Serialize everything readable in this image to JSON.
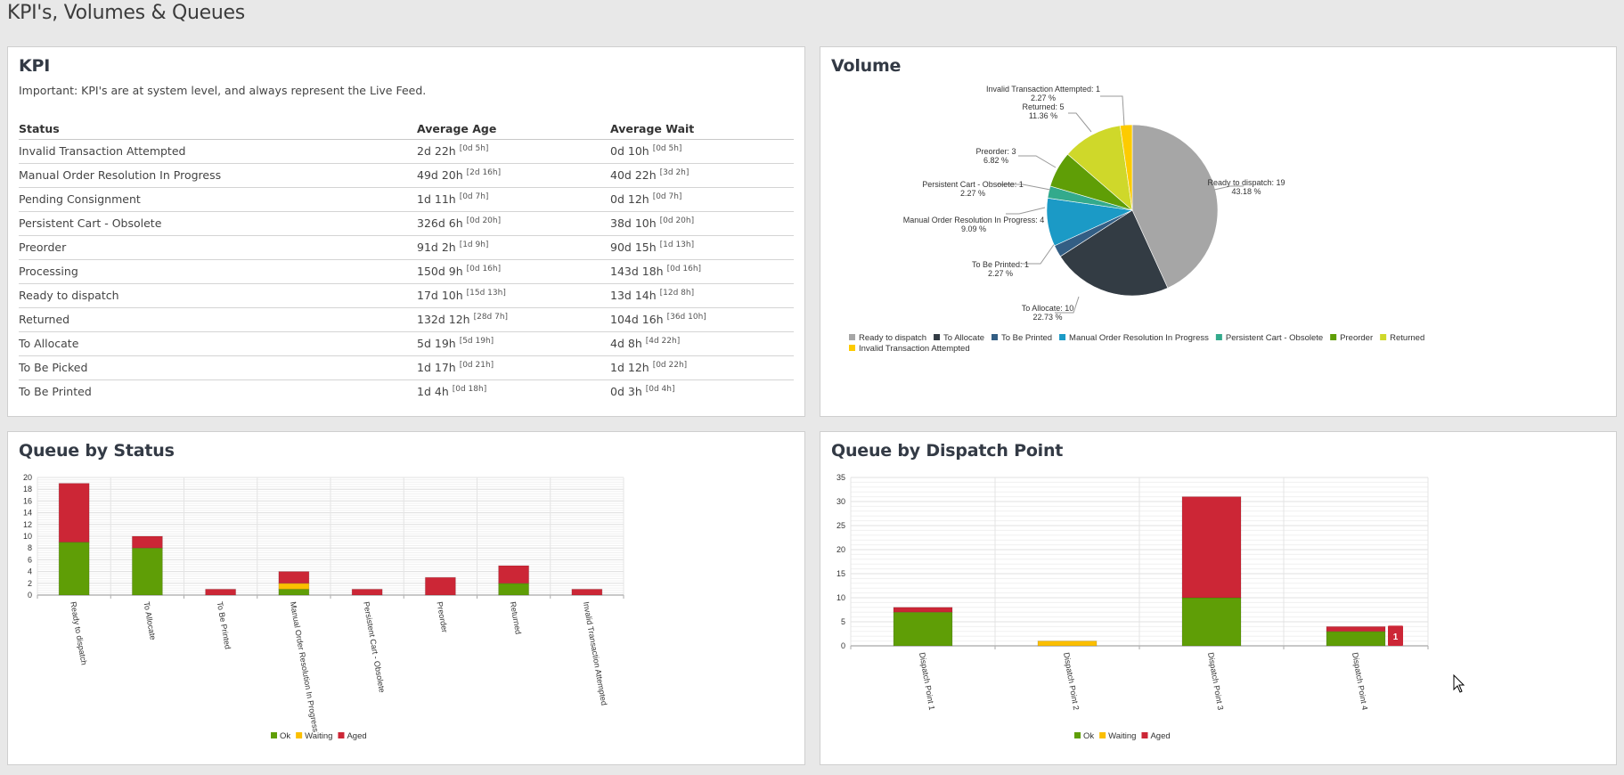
{
  "page": {
    "title": "KPI's, Volumes & Queues"
  },
  "kpi": {
    "title": "KPI",
    "note": "Important: KPI's are at system level, and always represent the Live Feed.",
    "columns": [
      "Status",
      "Average Age",
      "Average Wait"
    ],
    "rows": [
      {
        "status": "Invalid Transaction Attempted",
        "age": "2d 22h",
        "age_sub": "[0d 5h]",
        "wait": "0d 10h",
        "wait_sub": "[0d 5h]"
      },
      {
        "status": "Manual Order Resolution In Progress",
        "age": "49d 20h",
        "age_sub": "[2d 16h]",
        "wait": "40d 22h",
        "wait_sub": "[3d 2h]"
      },
      {
        "status": "Pending Consignment",
        "age": "1d 11h",
        "age_sub": "[0d 7h]",
        "wait": "0d 12h",
        "wait_sub": "[0d 7h]"
      },
      {
        "status": "Persistent Cart - Obsolete",
        "age": "326d 6h",
        "age_sub": "[0d 20h]",
        "wait": "38d 10h",
        "wait_sub": "[0d 20h]"
      },
      {
        "status": "Preorder",
        "age": "91d 2h",
        "age_sub": "[1d 9h]",
        "wait": "90d 15h",
        "wait_sub": "[1d 13h]"
      },
      {
        "status": "Processing",
        "age": "150d 9h",
        "age_sub": "[0d 16h]",
        "wait": "143d 18h",
        "wait_sub": "[0d 16h]"
      },
      {
        "status": "Ready to dispatch",
        "age": "17d 10h",
        "age_sub": "[15d 13h]",
        "wait": "13d 14h",
        "wait_sub": "[12d 8h]"
      },
      {
        "status": "Returned",
        "age": "132d 12h",
        "age_sub": "[28d 7h]",
        "wait": "104d 16h",
        "wait_sub": "[36d 10h]"
      },
      {
        "status": "To Allocate",
        "age": "5d 19h",
        "age_sub": "[5d 19h]",
        "wait": "4d 8h",
        "wait_sub": "[4d 22h]"
      },
      {
        "status": "To Be Picked",
        "age": "1d 17h",
        "age_sub": "[0d 21h]",
        "wait": "1d 12h",
        "wait_sub": "[0d 22h]"
      },
      {
        "status": "To Be Printed",
        "age": "1d 4h",
        "age_sub": "[0d 18h]",
        "wait": "0d 3h",
        "wait_sub": "[0d 4h]"
      }
    ]
  },
  "colors": {
    "ok": "#5f9e06",
    "waiting": "#fbbf00",
    "aged": "#cc2636"
  },
  "chart_data": [
    {
      "id": "volume",
      "type": "pie",
      "title": "Volume",
      "start_angle": "12 o'clock, clockwise",
      "legend_position": "bottom-left",
      "slices": [
        {
          "label": "Ready to dispatch",
          "value": 19,
          "percent": "43.18 %",
          "color": "#a6a6a6"
        },
        {
          "label": "To Allocate",
          "value": 10,
          "percent": "22.73 %",
          "color": "#333c44"
        },
        {
          "label": "To Be Printed",
          "value": 1,
          "percent": "2.27 %",
          "color": "#335e84"
        },
        {
          "label": "Manual Order Resolution In Progress",
          "value": 4,
          "percent": "9.09 %",
          "color": "#1b9ac6"
        },
        {
          "label": "Persistent Cart - Obsolete",
          "value": 1,
          "percent": "2.27 %",
          "color": "#33aa8c"
        },
        {
          "label": "Preorder",
          "value": 3,
          "percent": "6.82 %",
          "color": "#5f9e06"
        },
        {
          "label": "Returned",
          "value": 5,
          "percent": "11.36 %",
          "color": "#cfd82a"
        },
        {
          "label": "Invalid Transaction Attempted",
          "value": 1,
          "percent": "2.27 %",
          "color": "#fdcb00"
        }
      ]
    },
    {
      "id": "queue_by_status",
      "type": "bar",
      "stacked": true,
      "title": "Queue by Status",
      "xlabel": "",
      "ylabel": "",
      "ylim": [
        0,
        20
      ],
      "yticks": [
        0,
        2,
        4,
        6,
        8,
        10,
        12,
        14,
        16,
        18,
        20
      ],
      "grid": true,
      "legend_position": "bottom-center",
      "categories": [
        "Ready to dispatch",
        "To Allocate",
        "To Be Printed",
        "Manual Order Resolution In Progress",
        "Persistent Cart - Obsolete",
        "Preorder",
        "Returned",
        "Invalid Transaction Attempted"
      ],
      "series": [
        {
          "name": "Ok",
          "values": [
            9,
            8,
            0,
            1,
            0,
            0,
            2,
            0
          ]
        },
        {
          "name": "Waiting",
          "values": [
            0,
            0,
            0,
            1,
            0,
            0,
            0,
            0
          ]
        },
        {
          "name": "Aged",
          "values": [
            10,
            2,
            1,
            2,
            1,
            3,
            3,
            1
          ]
        }
      ]
    },
    {
      "id": "queue_by_dispatch_point",
      "type": "bar",
      "stacked": true,
      "title": "Queue by Dispatch Point",
      "xlabel": "",
      "ylabel": "",
      "ylim": [
        0,
        35
      ],
      "yticks": [
        0,
        5,
        10,
        15,
        20,
        25,
        30,
        35
      ],
      "grid": true,
      "legend_position": "bottom-center",
      "categories": [
        "Dispatch Point 1",
        "Dispatch Point 2",
        "Dispatch Point 3",
        "Dispatch Point 4"
      ],
      "series": [
        {
          "name": "Ok",
          "values": [
            7,
            0,
            10,
            3
          ]
        },
        {
          "name": "Waiting",
          "values": [
            0,
            1,
            0,
            0
          ]
        },
        {
          "name": "Aged",
          "values": [
            1,
            0,
            21,
            1
          ]
        }
      ],
      "tooltip": {
        "category": "Dispatch Point 4",
        "series": "Aged",
        "text": "1"
      }
    }
  ]
}
